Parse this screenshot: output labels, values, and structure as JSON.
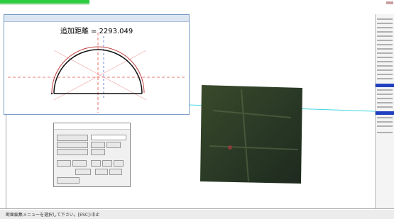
{
  "viewer": {
    "distance_text": "追加距離 = 2293.049"
  },
  "status_bar": {
    "text": "断面編集メニューを選択して下さい。[ESC]:中止"
  }
}
